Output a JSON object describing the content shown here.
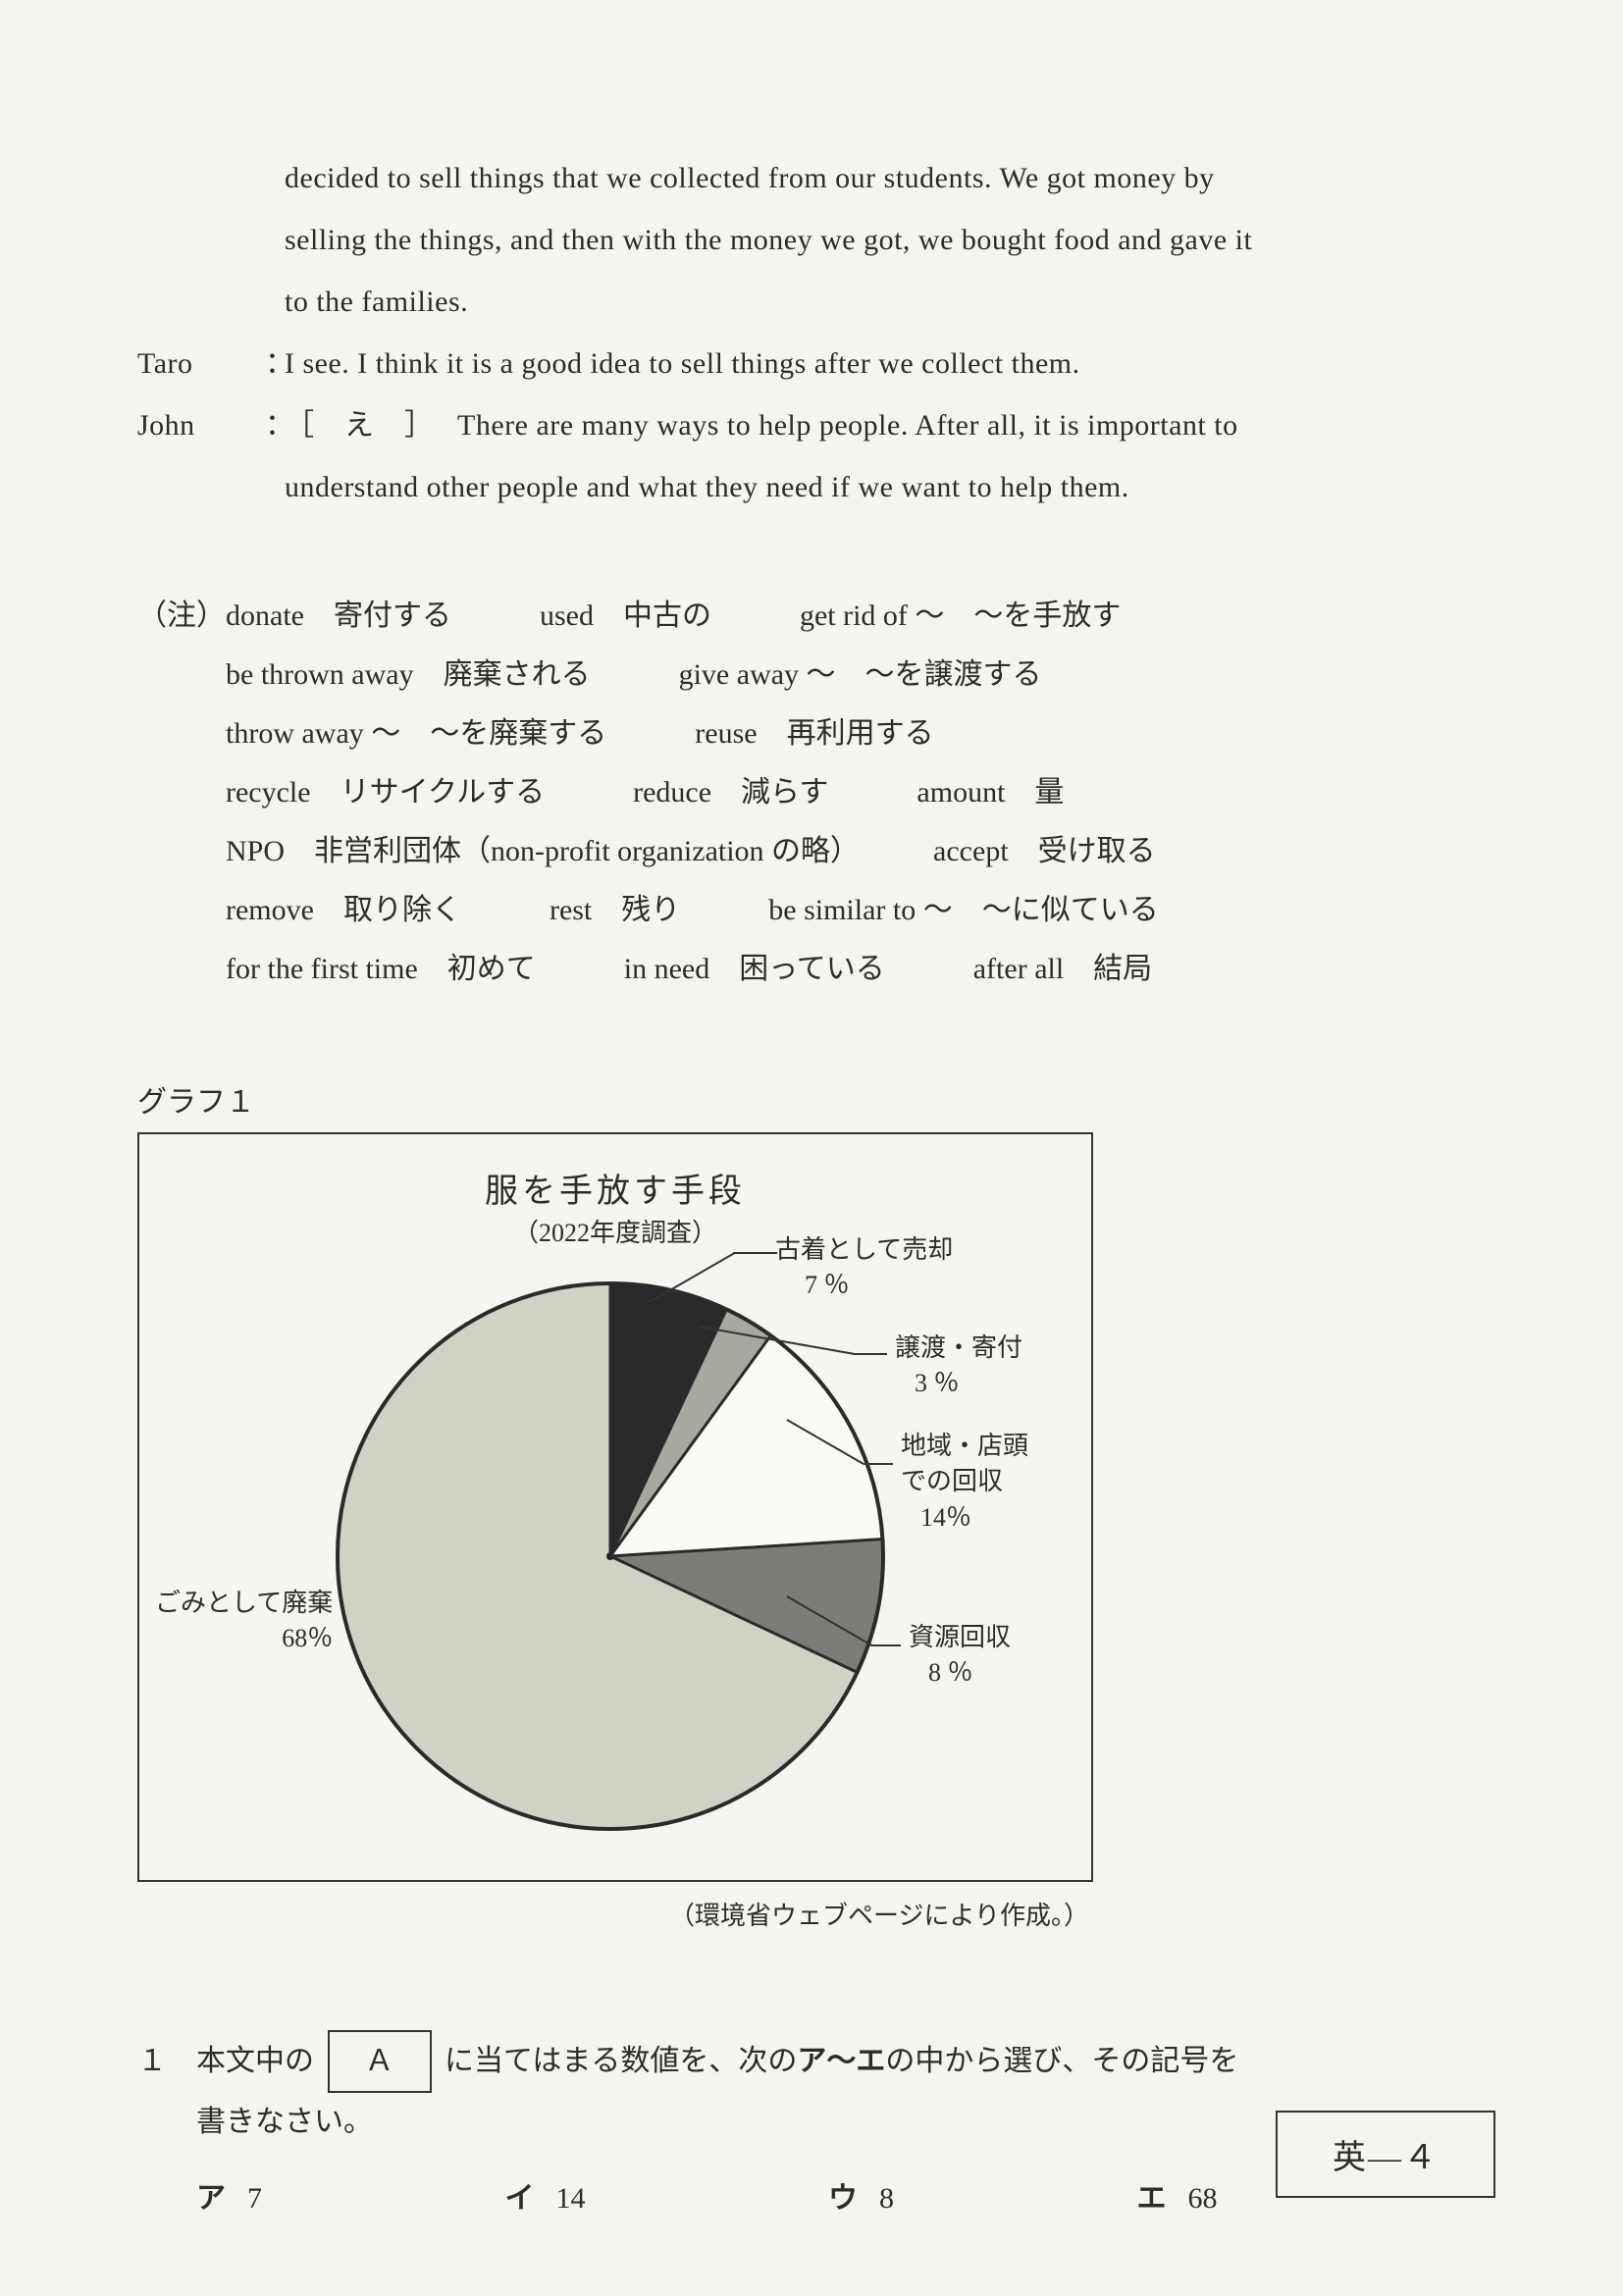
{
  "dialogue": {
    "cont1": "decided  to  sell  things  that  we  collected  from  our  students.   We  got  money  by",
    "cont2": "selling  the  things,  and  then  with  the  money  we  got,  we  bought  food  and  gave  it",
    "cont3": "to  the  families.",
    "taro_name": "Taro",
    "colon": "：",
    "taro_line": "I see.   I  think  it  is  a  good  idea  to  sell  things  after  we  collect  them.",
    "john_name": "John",
    "john_line1": "［　え　］　 There  are  many  ways  to  help  people.   After  all,  it  is  important  to",
    "john_line2": "understand  other  people  and  what  they  need  if  we  want  to  help  them."
  },
  "notes": {
    "label": "（注）",
    "l1": "donate　寄付する　　　used　中古の　　　get rid of ～　～を手放す",
    "l2": "be thrown away　廃棄される　　　give away ～　～を譲渡する",
    "l3": "throw away ～　～を廃棄する　　　reuse　再利用する",
    "l4": "recycle　リサイクルする　　　reduce　減らす　　　amount　量",
    "l5": "NPO　非営利団体（non-profit organization の略）　　　accept　受け取る",
    "l6": "remove　取り除く　　　rest　残り　　　be similar to ～　～に似ている",
    "l7": "for the first time　初めて　　　in need　困っている　　　after all　結局"
  },
  "graph": {
    "label": "グラフ１",
    "title": "服を手放す手段",
    "subtitle": "（2022年度調査）",
    "source": "（環境省ウェブページにより作成。）",
    "slices": [
      {
        "name": "古着として売却",
        "value": 7,
        "pct": "7 ％",
        "color": "#2a2a2a"
      },
      {
        "name": "譲渡・寄付",
        "value": 3,
        "pct": "3 ％",
        "color": "#a7a99e"
      },
      {
        "name": "地域・店頭での回収",
        "value": 14,
        "pct": "14％",
        "color": "#fbfbf6"
      },
      {
        "name": "資源回収",
        "value": 8,
        "pct": "8 ％",
        "color": "#7c7d78"
      },
      {
        "name": "ごみとして廃棄",
        "value": 68,
        "pct": "68％",
        "color": "#d0d2c6"
      }
    ],
    "stroke": "#2a2a2a",
    "background": "#f5f6ef",
    "lbl_left_name": "ごみとして廃棄",
    "lbl_left_pct": "68％",
    "lbl_a_name": "古着として売却",
    "lbl_a_pct": "7 ％",
    "lbl_b_name": "譲渡・寄付",
    "lbl_b_pct": "3 ％",
    "lbl_c_name1": "地域・店頭",
    "lbl_c_name2": "での回収",
    "lbl_c_pct": "14％",
    "lbl_d_name": "資源回収",
    "lbl_d_pct": "8 ％"
  },
  "question": {
    "num": "１",
    "text1": "本文中の",
    "box": "Ａ",
    "text2": "に当てはまる数値を、次の",
    "bold": "ア～エ",
    "text3": "の中から選び、その記号を",
    "text4": "書きなさい。",
    "choices": [
      {
        "k": "ア",
        "v": "7"
      },
      {
        "k": "イ",
        "v": "14"
      },
      {
        "k": "ウ",
        "v": "8"
      },
      {
        "k": "エ",
        "v": "68"
      }
    ]
  },
  "pageNumber": "英―４"
}
